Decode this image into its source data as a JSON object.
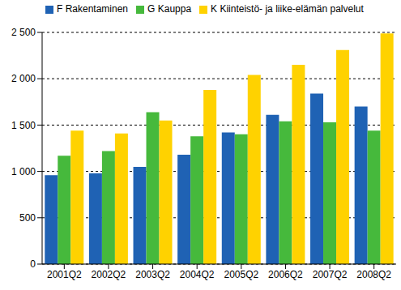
{
  "chart_data": {
    "type": "bar",
    "categories": [
      "2001Q2",
      "2002Q2",
      "2003Q2",
      "2004Q2",
      "2005Q2",
      "2006Q2",
      "2007Q2",
      "2008Q2"
    ],
    "series": [
      {
        "name": "F Rakentaminen",
        "color": "#1f62b4",
        "values": [
          960,
          980,
          1050,
          1180,
          1420,
          1610,
          1840,
          1700
        ]
      },
      {
        "name": "G Kauppa",
        "color": "#46b93c",
        "values": [
          1170,
          1220,
          1640,
          1380,
          1400,
          1540,
          1530,
          1440
        ]
      },
      {
        "name": "K Kiinteistö- ja liike-elämän palvelut",
        "color": "#ffd200",
        "values": [
          1440,
          1410,
          1550,
          1880,
          2040,
          2150,
          2310,
          2490
        ]
      }
    ],
    "ylim": [
      0,
      2500
    ],
    "yticks": [
      0,
      500,
      {
        "value": 1000,
        "label": "1 000"
      },
      {
        "value": 1500,
        "label": "1 500"
      },
      {
        "value": 2000,
        "label": "2 000"
      },
      {
        "value": 2500,
        "label": "2 500"
      }
    ],
    "grid": true,
    "legend": "top-left"
  }
}
